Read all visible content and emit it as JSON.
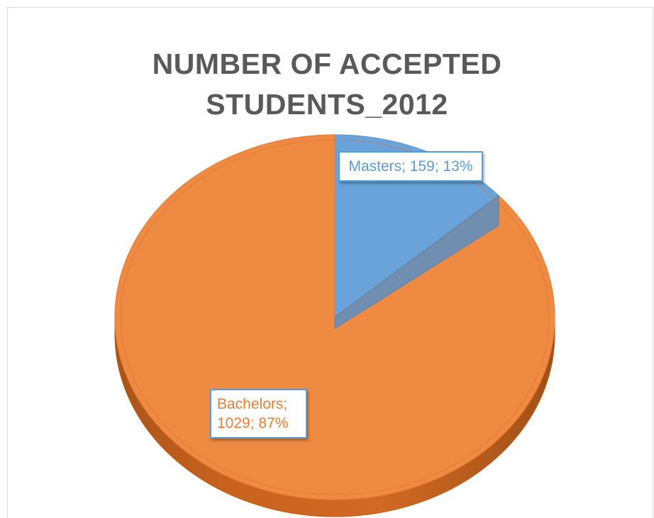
{
  "chart_data": {
    "type": "pie",
    "title_lines": [
      "NUMBER OF ACCEPTED",
      "STUDENTS_2012"
    ],
    "slices": [
      {
        "label": "Masters",
        "value": 159,
        "percent": "13%",
        "color": "#5b9bd5"
      },
      {
        "label": "Bachelors",
        "value": 1029,
        "percent": "87%",
        "color": "#ed7d31"
      }
    ],
    "data_labels": [
      "Masters; 159; 13%",
      "Bachelors; 1029; 87%"
    ],
    "legend": "none",
    "style": "3d"
  }
}
